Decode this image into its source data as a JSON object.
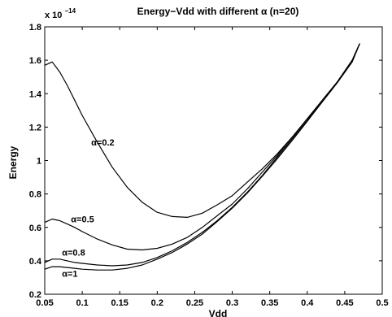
{
  "chart_data": {
    "type": "line",
    "title": "Energy−Vdd with different α (n=20)",
    "xlabel": "Vdd",
    "ylabel": "Energy",
    "y_scale_factor": "x 10",
    "y_scale_exponent": "−14",
    "xlim": [
      0.05,
      0.5
    ],
    "ylim": [
      0.2,
      1.8
    ],
    "x_ticks": [
      "0.05",
      "0.1",
      "0.15",
      "0.2",
      "0.25",
      "0.3",
      "0.35",
      "0.4",
      "0.45",
      "0.5"
    ],
    "y_ticks": [
      "0.2",
      "0.4",
      "0.6",
      "0.8",
      "1",
      "1.2",
      "1.4",
      "1.6",
      "1.8"
    ],
    "grid": false,
    "line_color": "#000000",
    "series": [
      {
        "name": "α=0.2",
        "label_text": "α=0.2",
        "x": [
          0.05,
          0.06,
          0.07,
          0.08,
          0.09,
          0.1,
          0.12,
          0.14,
          0.16,
          0.18,
          0.2,
          0.22,
          0.24,
          0.26,
          0.28,
          0.3,
          0.32,
          0.34,
          0.36,
          0.38,
          0.4,
          0.42,
          0.44,
          0.46,
          0.47
        ],
        "y": [
          1.57,
          1.59,
          1.53,
          1.45,
          1.36,
          1.27,
          1.11,
          0.96,
          0.84,
          0.75,
          0.69,
          0.665,
          0.66,
          0.685,
          0.735,
          0.79,
          0.87,
          0.95,
          1.04,
          1.14,
          1.25,
          1.36,
          1.47,
          1.6,
          1.7
        ]
      },
      {
        "name": "α=0.5",
        "label_text": "α=0.5",
        "x": [
          0.05,
          0.06,
          0.07,
          0.08,
          0.09,
          0.1,
          0.12,
          0.14,
          0.16,
          0.18,
          0.2,
          0.22,
          0.24,
          0.26,
          0.28,
          0.3,
          0.32,
          0.34,
          0.36,
          0.38,
          0.4,
          0.42,
          0.44,
          0.46,
          0.47
        ],
        "y": [
          0.63,
          0.65,
          0.64,
          0.62,
          0.6,
          0.575,
          0.53,
          0.495,
          0.47,
          0.465,
          0.475,
          0.5,
          0.54,
          0.6,
          0.67,
          0.74,
          0.83,
          0.93,
          1.03,
          1.14,
          1.25,
          1.36,
          1.47,
          1.6,
          1.7
        ]
      },
      {
        "name": "α=0.8",
        "label_text": "α=0.8",
        "x": [
          0.05,
          0.06,
          0.07,
          0.08,
          0.09,
          0.1,
          0.12,
          0.14,
          0.16,
          0.18,
          0.2,
          0.22,
          0.24,
          0.26,
          0.28,
          0.3,
          0.32,
          0.34,
          0.36,
          0.38,
          0.4,
          0.42,
          0.44,
          0.46,
          0.47
        ],
        "y": [
          0.39,
          0.41,
          0.41,
          0.4,
          0.39,
          0.385,
          0.375,
          0.37,
          0.375,
          0.39,
          0.42,
          0.46,
          0.51,
          0.57,
          0.64,
          0.72,
          0.81,
          0.91,
          1.02,
          1.13,
          1.24,
          1.36,
          1.47,
          1.6,
          1.7
        ]
      },
      {
        "name": "α=1",
        "label_text": "α=1",
        "x": [
          0.05,
          0.06,
          0.07,
          0.08,
          0.09,
          0.1,
          0.12,
          0.14,
          0.16,
          0.18,
          0.2,
          0.22,
          0.24,
          0.26,
          0.28,
          0.3,
          0.32,
          0.34,
          0.36,
          0.38,
          0.4,
          0.42,
          0.44,
          0.46,
          0.47
        ],
        "y": [
          0.35,
          0.365,
          0.365,
          0.36,
          0.355,
          0.35,
          0.345,
          0.345,
          0.355,
          0.375,
          0.41,
          0.45,
          0.5,
          0.56,
          0.635,
          0.715,
          0.805,
          0.905,
          1.01,
          1.12,
          1.235,
          1.35,
          1.465,
          1.59,
          1.7
        ]
      }
    ],
    "annotations": [
      {
        "text": "α=0.2",
        "x": 0.112,
        "y": 1.09
      },
      {
        "text": "α=0.5",
        "x": 0.085,
        "y": 0.63
      },
      {
        "text": "α=0.8",
        "x": 0.073,
        "y": 0.43
      },
      {
        "text": "α=1",
        "x": 0.073,
        "y": 0.305
      }
    ]
  }
}
